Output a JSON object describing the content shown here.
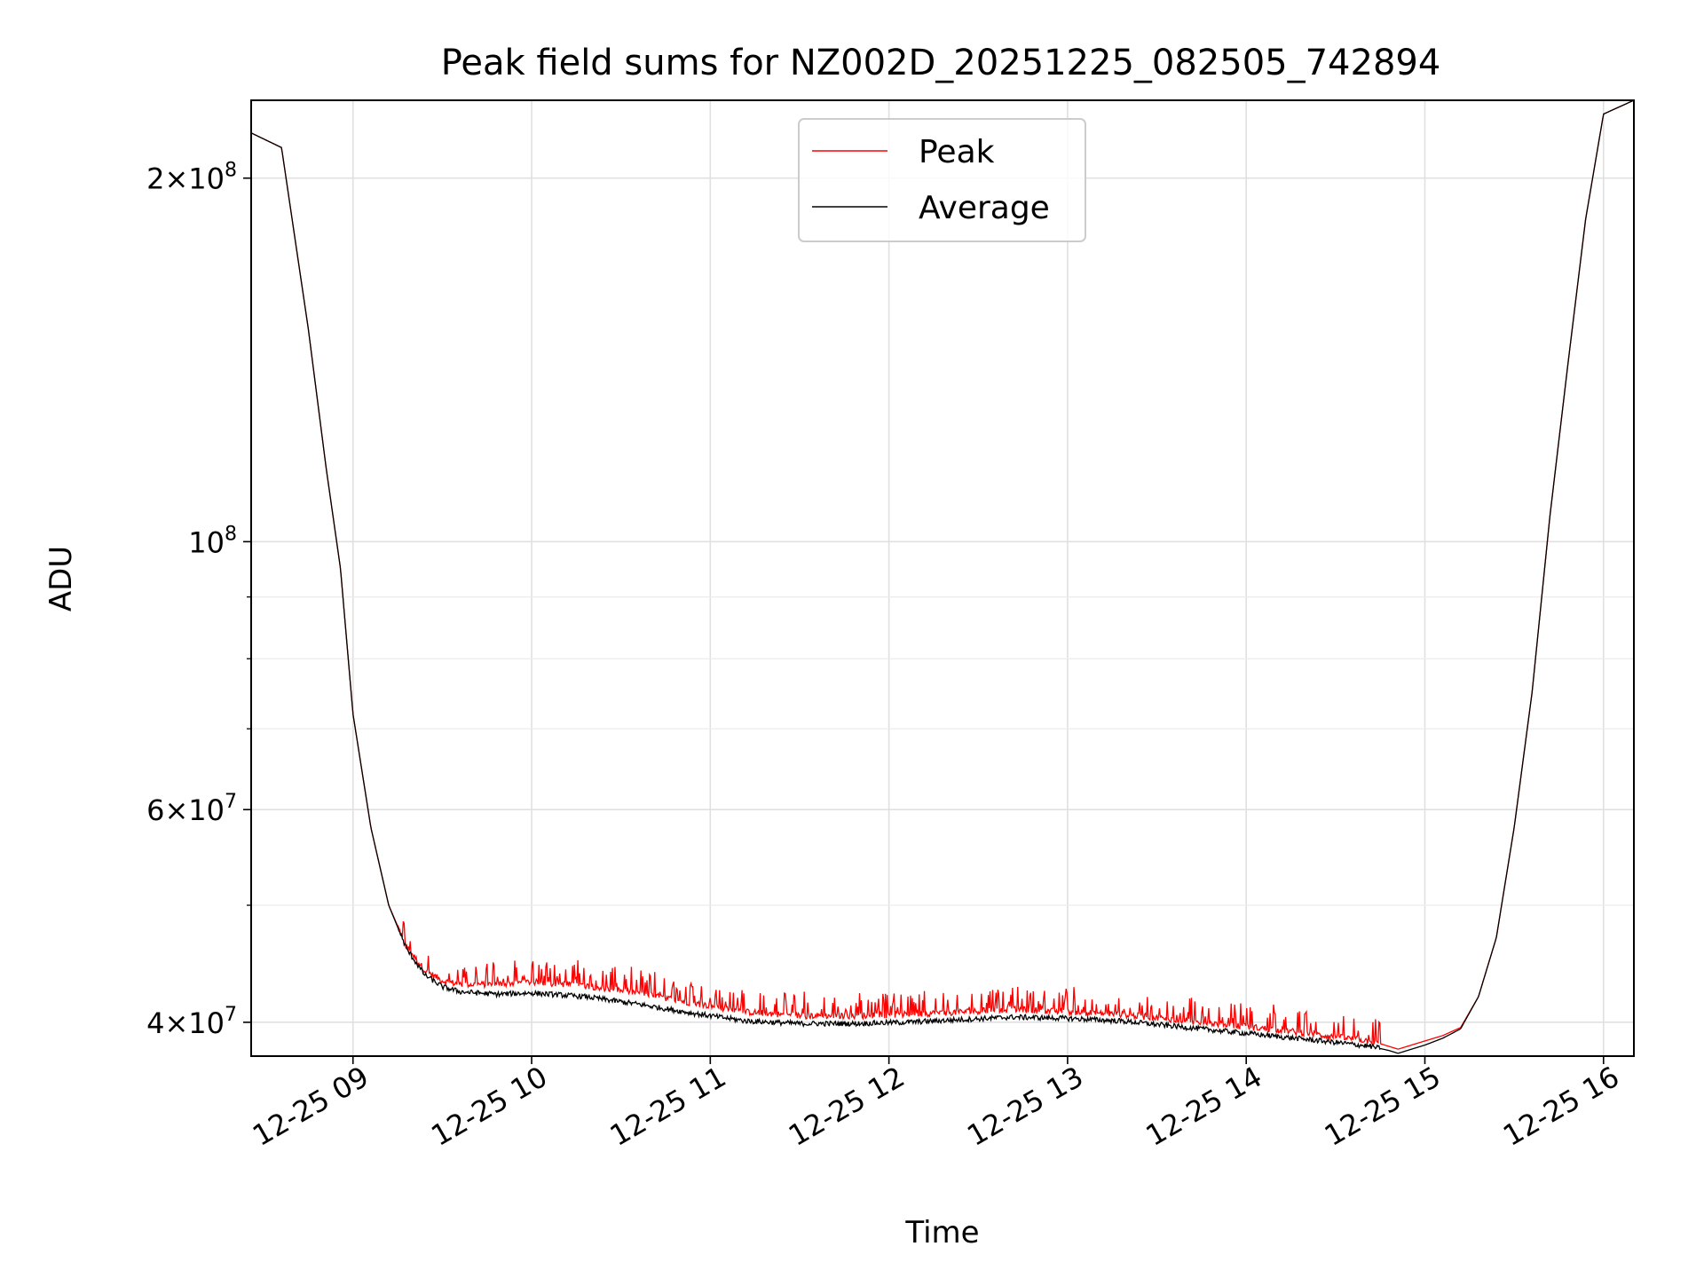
{
  "chart_data": {
    "type": "line",
    "title": "Peak field sums for NZ002D_20251225_082505_742894",
    "xlabel": "Time",
    "ylabel": "ADU",
    "y_scale": "log",
    "grid": true,
    "legend_position": "upper center",
    "xlim_hours": [
      8.43,
      16.17
    ],
    "ylim": [
      37500000,
      232000000
    ],
    "x_ticks": [
      {
        "value": 9,
        "label": "12-25 09"
      },
      {
        "value": 10,
        "label": "12-25 10"
      },
      {
        "value": 11,
        "label": "12-25 11"
      },
      {
        "value": 12,
        "label": "12-25 12"
      },
      {
        "value": 13,
        "label": "12-25 13"
      },
      {
        "value": 14,
        "label": "12-25 14"
      },
      {
        "value": 15,
        "label": "12-25 15"
      },
      {
        "value": 16,
        "label": "12-25 16"
      }
    ],
    "y_ticks": [
      {
        "value": 40000000,
        "base": "4",
        "exp": "7"
      },
      {
        "value": 60000000,
        "base": "6",
        "exp": "7"
      },
      {
        "value": 100000000,
        "base": "",
        "exp": "8"
      },
      {
        "value": 200000000,
        "base": "2",
        "exp": "8"
      }
    ],
    "y_minor_ticks": [
      50000000,
      70000000,
      80000000,
      90000000
    ],
    "times_symbol": "×",
    "ten": "10",
    "series": [
      {
        "name": "Peak",
        "color": "#ff0000",
        "x": [
          8.43,
          8.6,
          8.75,
          8.85,
          8.93,
          9.0,
          9.1,
          9.2,
          9.3,
          9.4,
          9.5,
          9.6,
          9.8,
          10.0,
          10.3,
          10.6,
          10.9,
          11.2,
          11.5,
          11.8,
          12.1,
          12.4,
          12.7,
          13.0,
          13.3,
          13.6,
          13.9,
          14.2,
          14.5,
          14.7,
          14.8,
          14.85,
          14.9,
          15.0,
          15.1,
          15.2,
          15.3,
          15.4,
          15.5,
          15.6,
          15.7,
          15.8,
          15.9,
          16.0,
          16.17
        ],
        "y": [
          218000000,
          212000000,
          150000000,
          115000000,
          95000000,
          72000000,
          58000000,
          50000000,
          46200000,
          44200000,
          43300000,
          43000000,
          43000000,
          43200000,
          42900000,
          42300000,
          41500000,
          40800000,
          40500000,
          40500000,
          40600000,
          40800000,
          41000000,
          40800000,
          40600000,
          40200000,
          39800000,
          39400000,
          38900000,
          38600000,
          38200000,
          38000000,
          38200000,
          38600000,
          39000000,
          39600000,
          42000000,
          47000000,
          58000000,
          75000000,
          105000000,
          140000000,
          185000000,
          226000000,
          232000000
        ],
        "spike_region_hours": [
          9.25,
          14.75
        ]
      },
      {
        "name": "Average",
        "color": "#000000",
        "x": [
          8.43,
          8.6,
          8.75,
          8.85,
          8.93,
          9.0,
          9.1,
          9.2,
          9.3,
          9.4,
          9.5,
          9.6,
          9.8,
          10.0,
          10.3,
          10.6,
          10.9,
          11.2,
          11.5,
          11.8,
          12.1,
          12.4,
          12.7,
          13.0,
          13.3,
          13.6,
          13.9,
          14.2,
          14.5,
          14.7,
          14.8,
          14.85,
          14.9,
          15.0,
          15.1,
          15.2,
          15.3,
          15.4,
          15.5,
          15.6,
          15.7,
          15.8,
          15.9,
          16.0,
          16.17
        ],
        "y": [
          218000000,
          212000000,
          150000000,
          115000000,
          95000000,
          72000000,
          58000000,
          50000000,
          46000000,
          43800000,
          42800000,
          42400000,
          42200000,
          42300000,
          42000000,
          41400000,
          40700000,
          40100000,
          39900000,
          39900000,
          40000000,
          40200000,
          40400000,
          40300000,
          40100000,
          39700000,
          39300000,
          38900000,
          38500000,
          38200000,
          37900000,
          37700000,
          37900000,
          38300000,
          38800000,
          39500000,
          42000000,
          47000000,
          58000000,
          75000000,
          105000000,
          140000000,
          185000000,
          226000000,
          232000000
        ]
      }
    ]
  }
}
